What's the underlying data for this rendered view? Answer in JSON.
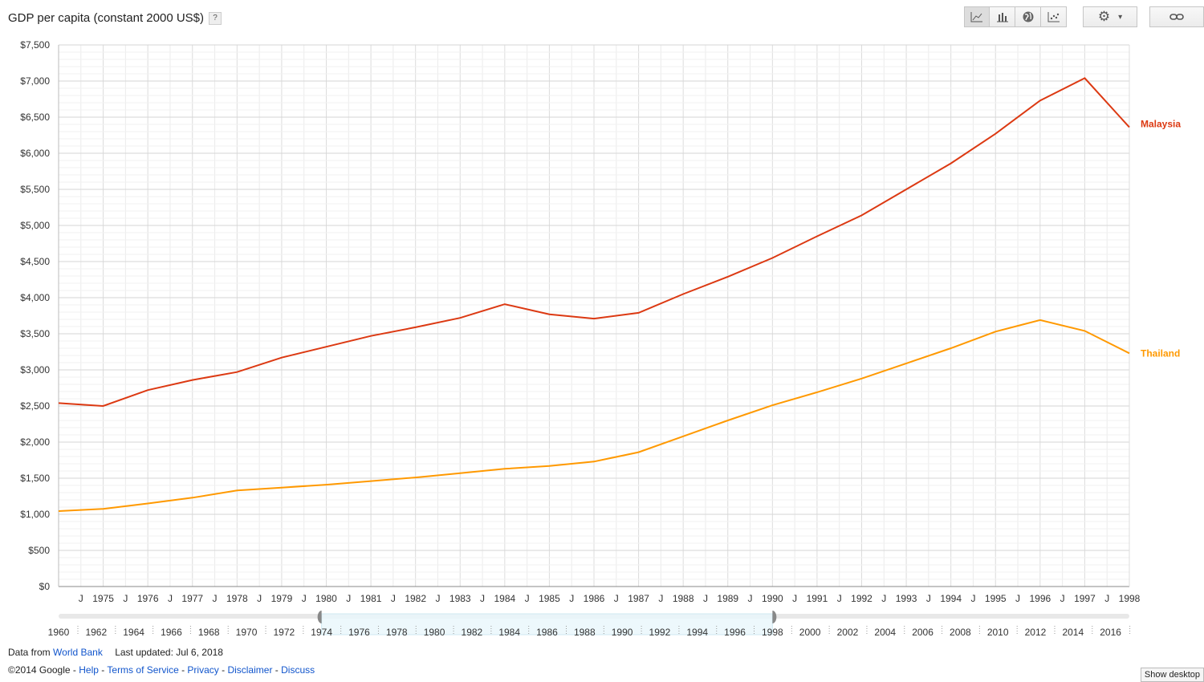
{
  "header": {
    "title": "GDP per capita (constant 2000 US$)",
    "help_label": "?"
  },
  "toolbar": {
    "chart_types": [
      {
        "icon": "line-chart-icon",
        "selected": true
      },
      {
        "icon": "bar-chart-icon",
        "selected": false
      },
      {
        "icon": "map-globe-icon",
        "selected": false
      },
      {
        "icon": "scatter-chart-icon",
        "selected": false
      }
    ],
    "settings_icon": "gear-icon",
    "settings_caret": "▾",
    "link_icon": "link-icon"
  },
  "chart_data": {
    "type": "line",
    "x": [
      1974,
      1975,
      1976,
      1977,
      1978,
      1979,
      1980,
      1981,
      1982,
      1983,
      1984,
      1985,
      1986,
      1987,
      1988,
      1989,
      1990,
      1991,
      1992,
      1993,
      1994,
      1995,
      1996,
      1997,
      1998
    ],
    "series": [
      {
        "name": "Malaysia",
        "color": "#dc3912",
        "values": [
          2540,
          2500,
          2720,
          2860,
          2970,
          3170,
          3320,
          3470,
          3590,
          3720,
          3910,
          3770,
          3710,
          3790,
          4050,
          4290,
          4550,
          4850,
          5140,
          5500,
          5860,
          6270,
          6730,
          7040,
          6360
        ]
      },
      {
        "name": "Thailand",
        "color": "#ff9900",
        "values": [
          1045,
          1075,
          1150,
          1230,
          1330,
          1370,
          1410,
          1460,
          1510,
          1570,
          1630,
          1670,
          1730,
          1860,
          2080,
          2300,
          2510,
          2690,
          2880,
          3090,
          3300,
          3530,
          3690,
          3540,
          3230
        ]
      }
    ],
    "ylim": [
      0,
      7500
    ],
    "yticks": [
      "$0",
      "$500",
      "$1,000",
      "$1,500",
      "$2,000",
      "$2,500",
      "$3,000",
      "$3,500",
      "$4,000",
      "$4,500",
      "$5,000",
      "$5,500",
      "$6,000",
      "$6,500",
      "$7,000",
      "$7,500"
    ],
    "xticks": [
      "1975",
      "1976",
      "1977",
      "1978",
      "1979",
      "1980",
      "1981",
      "1982",
      "1983",
      "1984",
      "1985",
      "1986",
      "1987",
      "1988",
      "1989",
      "1990",
      "1991",
      "1992",
      "1993",
      "1994",
      "1995",
      "1996",
      "1997",
      "1998"
    ],
    "xminor_label": "J",
    "grid": true,
    "legend": "right-inline"
  },
  "timeline": {
    "years": [
      "1960",
      "1962",
      "1964",
      "1966",
      "1968",
      "1970",
      "1972",
      "1974",
      "1976",
      "1978",
      "1980",
      "1982",
      "1984",
      "1986",
      "1988",
      "1990",
      "1992",
      "1994",
      "1996",
      "1998",
      "2000",
      "2002",
      "2004",
      "2006",
      "2008",
      "2010",
      "2012",
      "2014",
      "2016"
    ],
    "range_start": 1974,
    "range_end": 1998,
    "min_year": 1960,
    "max_year": 2017
  },
  "footer": {
    "data_from": "Data from",
    "source": "World Bank",
    "updated": "Last updated: Jul 6, 2018",
    "copyright": "©2014 Google -",
    "links": [
      "Help",
      "Terms of Service",
      "Privacy",
      "Disclaimer",
      "Discuss"
    ],
    "show_desktop": "Show desktop"
  }
}
